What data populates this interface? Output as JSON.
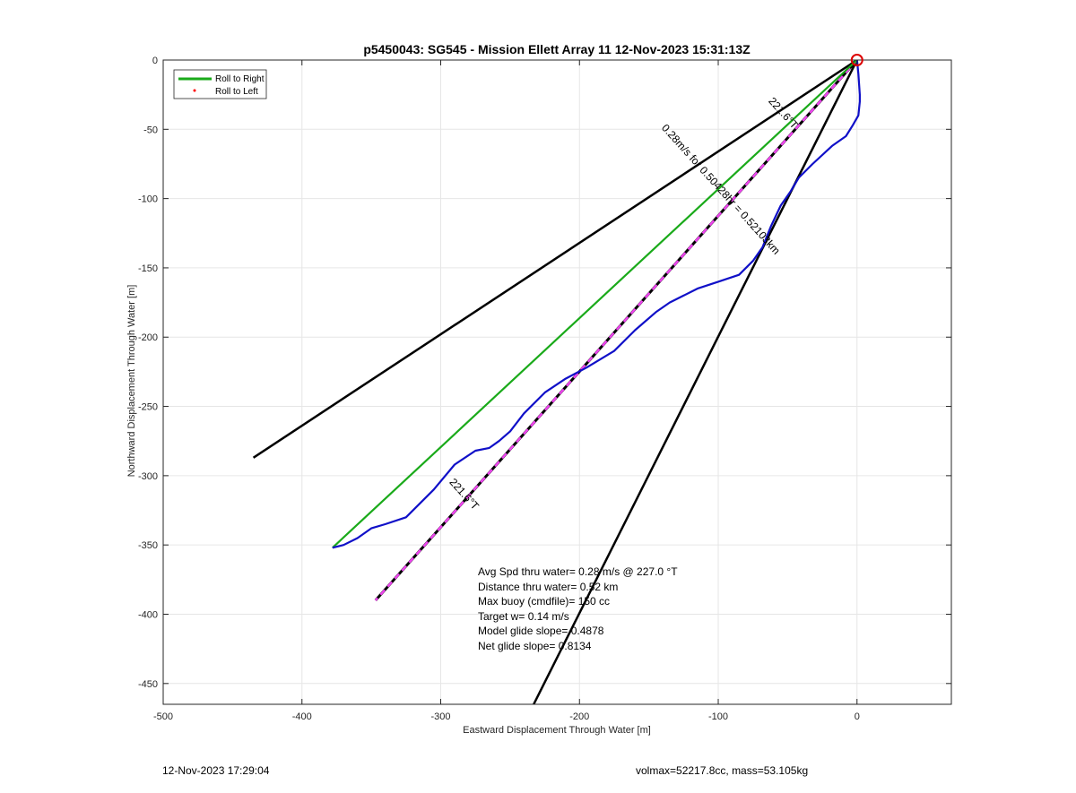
{
  "chart_data": {
    "type": "line",
    "title": "p5450043: SG545 - Mission Ellett Array 11 12-Nov-2023 15:31:13Z",
    "xlabel": "Eastward Displacement Through Water [m]",
    "ylabel": "Northward Displacement Through Water [m]",
    "xlim": [
      -500,
      68
    ],
    "ylim": [
      -465,
      0
    ],
    "x_ticks": [
      -500,
      -400,
      -300,
      -200,
      -100,
      0
    ],
    "y_ticks": [
      0,
      -50,
      -100,
      -150,
      -200,
      -250,
      -300,
      -350,
      -400,
      -450
    ],
    "grid": true,
    "legend_position": "top-left",
    "legend": [
      {
        "label": "Roll to Right",
        "color": "#1aaa1a",
        "style": "line"
      },
      {
        "label": "Roll to Left",
        "color": "#ff0000",
        "style": "dot"
      }
    ],
    "series": [
      {
        "kind": "glider-track",
        "color": "#1010c8",
        "x": [
          0,
          1,
          2,
          2,
          1,
          -3,
          -8,
          -18,
          -32,
          -42,
          -48,
          -55,
          -62,
          -68,
          -75,
          -85,
          -100,
          -115,
          -125,
          -135,
          -145,
          -160,
          -175,
          -195,
          -210,
          -225,
          -240,
          -250,
          -258,
          -265,
          -275,
          -290,
          -305,
          -325,
          -340,
          -350,
          -360,
          -370,
          -378
        ],
        "y": [
          0,
          -10,
          -25,
          -30,
          -40,
          -47,
          -55,
          -62,
          -75,
          -85,
          -95,
          -105,
          -120,
          -135,
          -145,
          -155,
          -160,
          -165,
          -170,
          -175,
          -182,
          -195,
          -210,
          -222,
          -230,
          -240,
          -255,
          -268,
          -275,
          -280,
          -282,
          -292,
          -310,
          -330,
          -335,
          -338,
          -345,
          -350,
          -352
        ]
      },
      {
        "kind": "roll-to-right",
        "color": "#1aaa1a",
        "x": [
          0,
          -378
        ],
        "y": [
          0,
          -352
        ]
      },
      {
        "kind": "heading-line-dashed",
        "color": "#000000",
        "dash_color": "#ee44ee",
        "x": [
          0,
          -347
        ],
        "y": [
          0,
          -390
        ]
      },
      {
        "kind": "envelope-line-upper",
        "color": "#000000",
        "x": [
          0,
          -435
        ],
        "y": [
          0,
          -287
        ]
      },
      {
        "kind": "envelope-line-lower",
        "color": "#000000",
        "x": [
          0,
          -233
        ],
        "y": [
          0,
          -465
        ]
      }
    ],
    "annotations": {
      "rotated": [
        {
          "text": "221.6°T",
          "x": -55,
          "y": -40,
          "angle": -48
        },
        {
          "text": "0.28m/s for 0.50428hr = 0.52103km",
          "x": -100,
          "y": -95,
          "angle": -48
        },
        {
          "text": "221.6°T",
          "x": -285,
          "y": -315,
          "angle": -48
        }
      ],
      "text_block": [
        "Avg Spd thru water=  0.28 m/s @ 227.0 °T",
        "Distance thru water=  0.52 km",
        "Max buoy (cmdfile)= 150 cc",
        "Target w= 0.14 m/s",
        "Model glide slope= 0.4878",
        "Net glide slope= 0.8134"
      ],
      "origin_marker": {
        "x": 0,
        "y": 0,
        "color": "#dd0000"
      }
    }
  },
  "footer": {
    "left": "12-Nov-2023 17:29:04",
    "right": "volmax=52217.8cc, mass=53.105kg"
  }
}
